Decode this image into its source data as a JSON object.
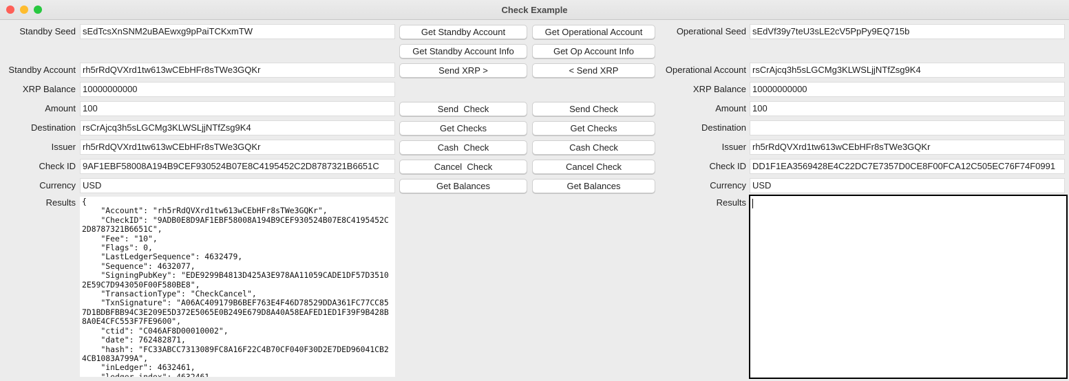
{
  "window": {
    "title": "Check Example"
  },
  "standby": {
    "fields": [
      {
        "label": "Standby Seed",
        "value": "sEdTcsXnSNM2uBAEwxg9pPaiTCKxmTW",
        "row": 0
      },
      {
        "label": "Standby Account",
        "value": "rh5rRdQVXrd1tw613wCEbHFr8sTWe3GQKr",
        "row": 2
      },
      {
        "label": "XRP Balance",
        "value": "10000000000",
        "row": 3
      },
      {
        "label": "Amount",
        "value": "100",
        "row": 4
      },
      {
        "label": "Destination",
        "value": "rsCrAjcq3h5sLGCMg3KLWSLjjNTfZsg9K4",
        "row": 5
      },
      {
        "label": "Issuer",
        "value": "rh5rRdQVXrd1tw613wCEbHFr8sTWe3GQKr",
        "row": 6
      },
      {
        "label": "Check ID",
        "value": "9AF1EBF58008A194B9CEF930524B07E8C4195452C2D8787321B6651C",
        "row": 7
      },
      {
        "label": "Currency",
        "value": "USD",
        "row": 8
      }
    ],
    "results_label": "Results",
    "results": "{\n    \"Account\": \"rh5rRdQVXrd1tw613wCEbHFr8sTWe3GQKr\",\n    \"CheckID\": \"9ADB0E8D9AF1EBF58008A194B9CEF930524B07E8C4195452C2D8787321B6651C\",\n    \"Fee\": \"10\",\n    \"Flags\": 0,\n    \"LastLedgerSequence\": 4632479,\n    \"Sequence\": 4632077,\n    \"SigningPubKey\": \"EDE9299B4813D425A3E978AA11059CADE1DF57D35102E59C7D943050F00F580BE8\",\n    \"TransactionType\": \"CheckCancel\",\n    \"TxnSignature\": \"A06AC409179B6BEF763E4F46D78529DDA361FC77CC857D1BDBFBB94C3E209E5D372E5065E0B249E679D8A40A58EAFED1ED1F39F9B428B8A0E4CFC553F7FE9600\",\n    \"ctid\": \"C046AF8D00010002\",\n    \"date\": 762482871,\n    \"hash\": \"FC33ABCC7313089FC8A16F22C4B70CF040F30D2E7DED96041CB24CB1083A799A\",\n    \"inLedger\": 4632461,\n    \"ledger_index\": 4632461,"
  },
  "operational": {
    "fields": [
      {
        "label": "Operational Seed",
        "value": "sEdVf39y7teU3sLE2cV5PpPy9EQ715b",
        "row": 0
      },
      {
        "label": "Operational Account",
        "value": "rsCrAjcq3h5sLGCMg3KLWSLjjNTfZsg9K4",
        "row": 2
      },
      {
        "label": "XRP Balance",
        "value": "10000000000",
        "row": 3
      },
      {
        "label": "Amount",
        "value": "100",
        "row": 4
      },
      {
        "label": "Destination",
        "value": "",
        "row": 5
      },
      {
        "label": "Issuer",
        "value": "rh5rRdQVXrd1tw613wCEbHFr8sTWe3GQKr",
        "row": 6
      },
      {
        "label": "Check ID",
        "value": "DD1F1EA3569428E4C22DC7E7357D0CE8F00FCA12C505EC76F74F0991",
        "row": 7
      },
      {
        "label": "Currency",
        "value": "USD",
        "row": 8
      }
    ],
    "results_label": "Results",
    "results": ""
  },
  "buttons": {
    "standby": [
      {
        "label": "Get Standby Account",
        "row": 0
      },
      {
        "label": "Get Standby Account Info",
        "row": 1
      },
      {
        "label": "Send XRP >",
        "row": 2
      },
      {
        "label": "Send  Check",
        "row": 4
      },
      {
        "label": "Get Checks",
        "row": 5
      },
      {
        "label": "Cash  Check",
        "row": 6
      },
      {
        "label": "Cancel  Check",
        "row": 7
      },
      {
        "label": "Get Balances",
        "row": 8
      }
    ],
    "operational": [
      {
        "label": "Get Operational Account",
        "row": 0
      },
      {
        "label": "Get Op Account Info",
        "row": 1
      },
      {
        "label": "< Send XRP",
        "row": 2
      },
      {
        "label": "Send Check",
        "row": 4
      },
      {
        "label": "Get Checks",
        "row": 5
      },
      {
        "label": "Cash Check",
        "row": 6
      },
      {
        "label": "Cancel Check",
        "row": 7
      },
      {
        "label": "Get Balances",
        "row": 8
      }
    ]
  },
  "colors": {
    "close": "#fe5f57",
    "minimize": "#febc2e",
    "zoom": "#28c840"
  }
}
